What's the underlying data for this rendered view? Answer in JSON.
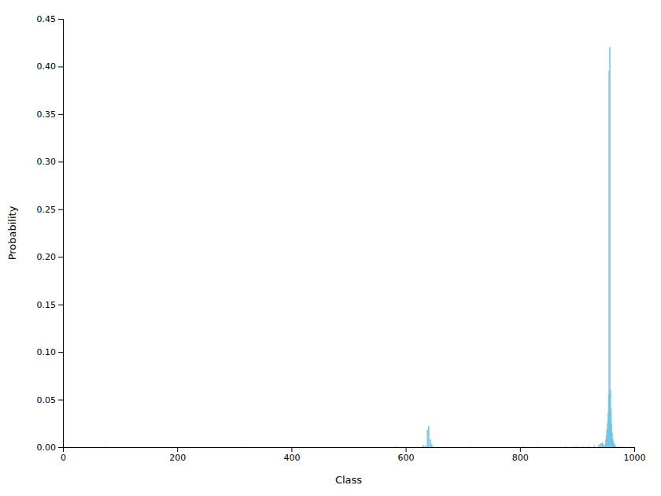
{
  "chart_data": {
    "type": "bar",
    "xlabel": "Class",
    "ylabel": "Probability",
    "color": "#6ec6e8",
    "x": [
      2,
      75,
      310,
      420,
      500,
      582,
      625,
      630,
      632,
      635,
      638,
      640,
      643,
      645,
      647,
      710,
      755,
      805,
      830,
      880,
      895,
      900,
      910,
      920,
      930,
      938,
      940,
      942,
      944,
      946,
      948,
      950,
      951,
      952,
      953,
      954,
      955,
      956,
      957,
      958,
      959,
      960,
      961,
      962,
      963,
      964,
      965,
      966,
      967,
      970,
      975,
      980,
      990,
      995
    ],
    "values": [
      0.0003,
      0.0002,
      0.0001,
      0.0001,
      0.0001,
      0.0003,
      0.0002,
      0.002,
      0.001,
      0.0015,
      0.018,
      0.022,
      0.008,
      0.003,
      0.001,
      0.0002,
      0.0001,
      0.0003,
      0.0002,
      0.0003,
      0.0004,
      0.0003,
      0.0006,
      0.0008,
      0.0015,
      0.002,
      0.003,
      0.004,
      0.005,
      0.003,
      0.002,
      0.008,
      0.012,
      0.018,
      0.025,
      0.035,
      0.055,
      0.395,
      0.42,
      0.06,
      0.04,
      0.025,
      0.015,
      0.009,
      0.006,
      0.004,
      0.003,
      0.002,
      0.001,
      0.0005,
      0.0004,
      0.0002,
      0.0002,
      0.0004
    ],
    "xlim": [
      0,
      1000
    ],
    "xticks": [
      0,
      200,
      400,
      600,
      800,
      1000
    ],
    "ylim": [
      0,
      0.45
    ],
    "yticks": [
      {
        "value": 0.0,
        "label": "0.00"
      },
      0.05,
      {
        "value": 0.1,
        "label": "0.10"
      },
      0.15,
      {
        "value": 0.2,
        "label": "0.20"
      },
      0.25,
      {
        "value": 0.3,
        "label": "0.30"
      },
      0.35,
      {
        "value": 0.4,
        "label": "0.40"
      },
      0.45
    ],
    "grid": false
  }
}
